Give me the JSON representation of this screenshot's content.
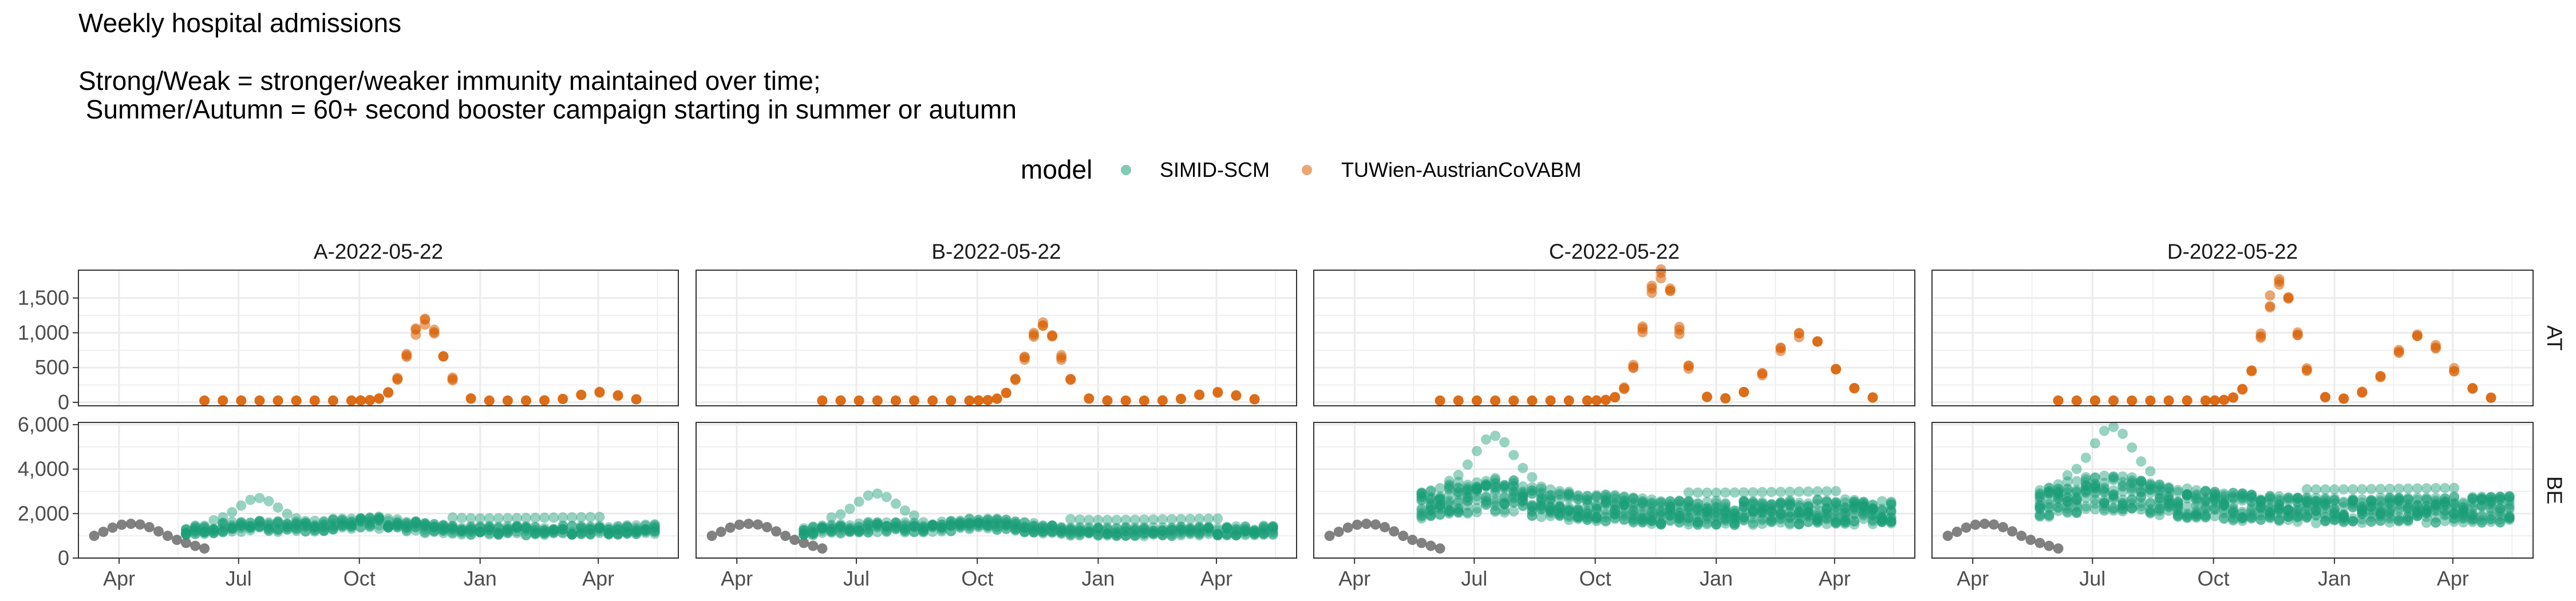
{
  "title_lines": [
    "Weekly hospital admissions",
    "",
    "Strong/Weak = stronger/weaker immunity maintained over time;",
    " Summer/Autumn = 60+ second booster campaign starting in summer or autumn"
  ],
  "legend": {
    "title": "model",
    "items": [
      {
        "label": "SIMID-SCM",
        "color": "#1b9e77"
      },
      {
        "label": "TUWien-AustrianCoVABM",
        "color": "#d95f02"
      }
    ]
  },
  "colors": {
    "observed": "#6b6b6b",
    "grid": "#ebebeb",
    "panel_border": "#333333"
  },
  "chart_data": {
    "type": "scatter",
    "facet_columns": [
      "A-2022-05-22",
      "B-2022-05-22",
      "C-2022-05-22",
      "D-2022-05-22"
    ],
    "facet_rows": [
      "AT",
      "BE"
    ],
    "x_axis": {
      "ticks": [
        "Apr",
        "Jul",
        "Oct",
        "Jan",
        "Apr"
      ],
      "range": [
        "2022-03-01",
        "2023-06-01"
      ]
    },
    "y_axis": {
      "AT": {
        "range": [
          -50,
          1900
        ],
        "ticks": [
          0,
          500,
          1000,
          1500
        ],
        "tick_labels": [
          "0",
          "500",
          "1,000",
          "1,500"
        ]
      },
      "BE": {
        "range": [
          0,
          6100
        ],
        "ticks": [
          0,
          2000,
          4000,
          6000
        ],
        "tick_labels": [
          "0",
          "2,000",
          "4,000",
          "6,000"
        ]
      }
    },
    "grid": true,
    "legend_position": "top",
    "observed_BE": {
      "dates": [
        "2022-03-13",
        "2022-03-20",
        "2022-03-27",
        "2022-04-03",
        "2022-04-10",
        "2022-04-17",
        "2022-04-24",
        "2022-05-01",
        "2022-05-08",
        "2022-05-15",
        "2022-05-22",
        "2022-05-29",
        "2022-06-05"
      ],
      "values": [
        1000,
        1180,
        1370,
        1500,
        1540,
        1510,
        1390,
        1200,
        1000,
        820,
        680,
        550,
        430
      ]
    },
    "AT_TUWien": {
      "dates": [
        "2022-06-05",
        "2022-06-19",
        "2022-07-03",
        "2022-07-17",
        "2022-07-31",
        "2022-08-14",
        "2022-08-28",
        "2022-09-11",
        "2022-09-25",
        "2022-10-02",
        "2022-10-09",
        "2022-10-16",
        "2022-10-23",
        "2022-10-30",
        "2022-11-06",
        "2022-11-13",
        "2022-11-20",
        "2022-11-27",
        "2022-12-04",
        "2022-12-11",
        "2022-12-25",
        "2023-01-08",
        "2023-01-22",
        "2023-02-05",
        "2023-02-19",
        "2023-03-05",
        "2023-03-19",
        "2023-04-02",
        "2023-04-16",
        "2023-04-30"
      ],
      "panels": {
        "A-2022-05-22": {
          "peak1": 1150,
          "peak2": 0
        },
        "B-2022-05-22": {
          "peak1": 1100,
          "peak2": 0
        },
        "C-2022-05-22": {
          "peak1": 1800,
          "peak2": 950
        },
        "D-2022-05-22": {
          "peak1": 1650,
          "peak2": 900
        }
      }
    },
    "BE_SIMID": {
      "panels": {
        "A-2022-05-22": {
          "baseline": 1100,
          "max": 2700
        },
        "B-2022-05-22": {
          "baseline": 1050,
          "max": 2900
        },
        "C-2022-05-22": {
          "baseline": 1900,
          "max": 5500
        },
        "D-2022-05-22": {
          "baseline": 2000,
          "max": 5900
        }
      }
    }
  }
}
